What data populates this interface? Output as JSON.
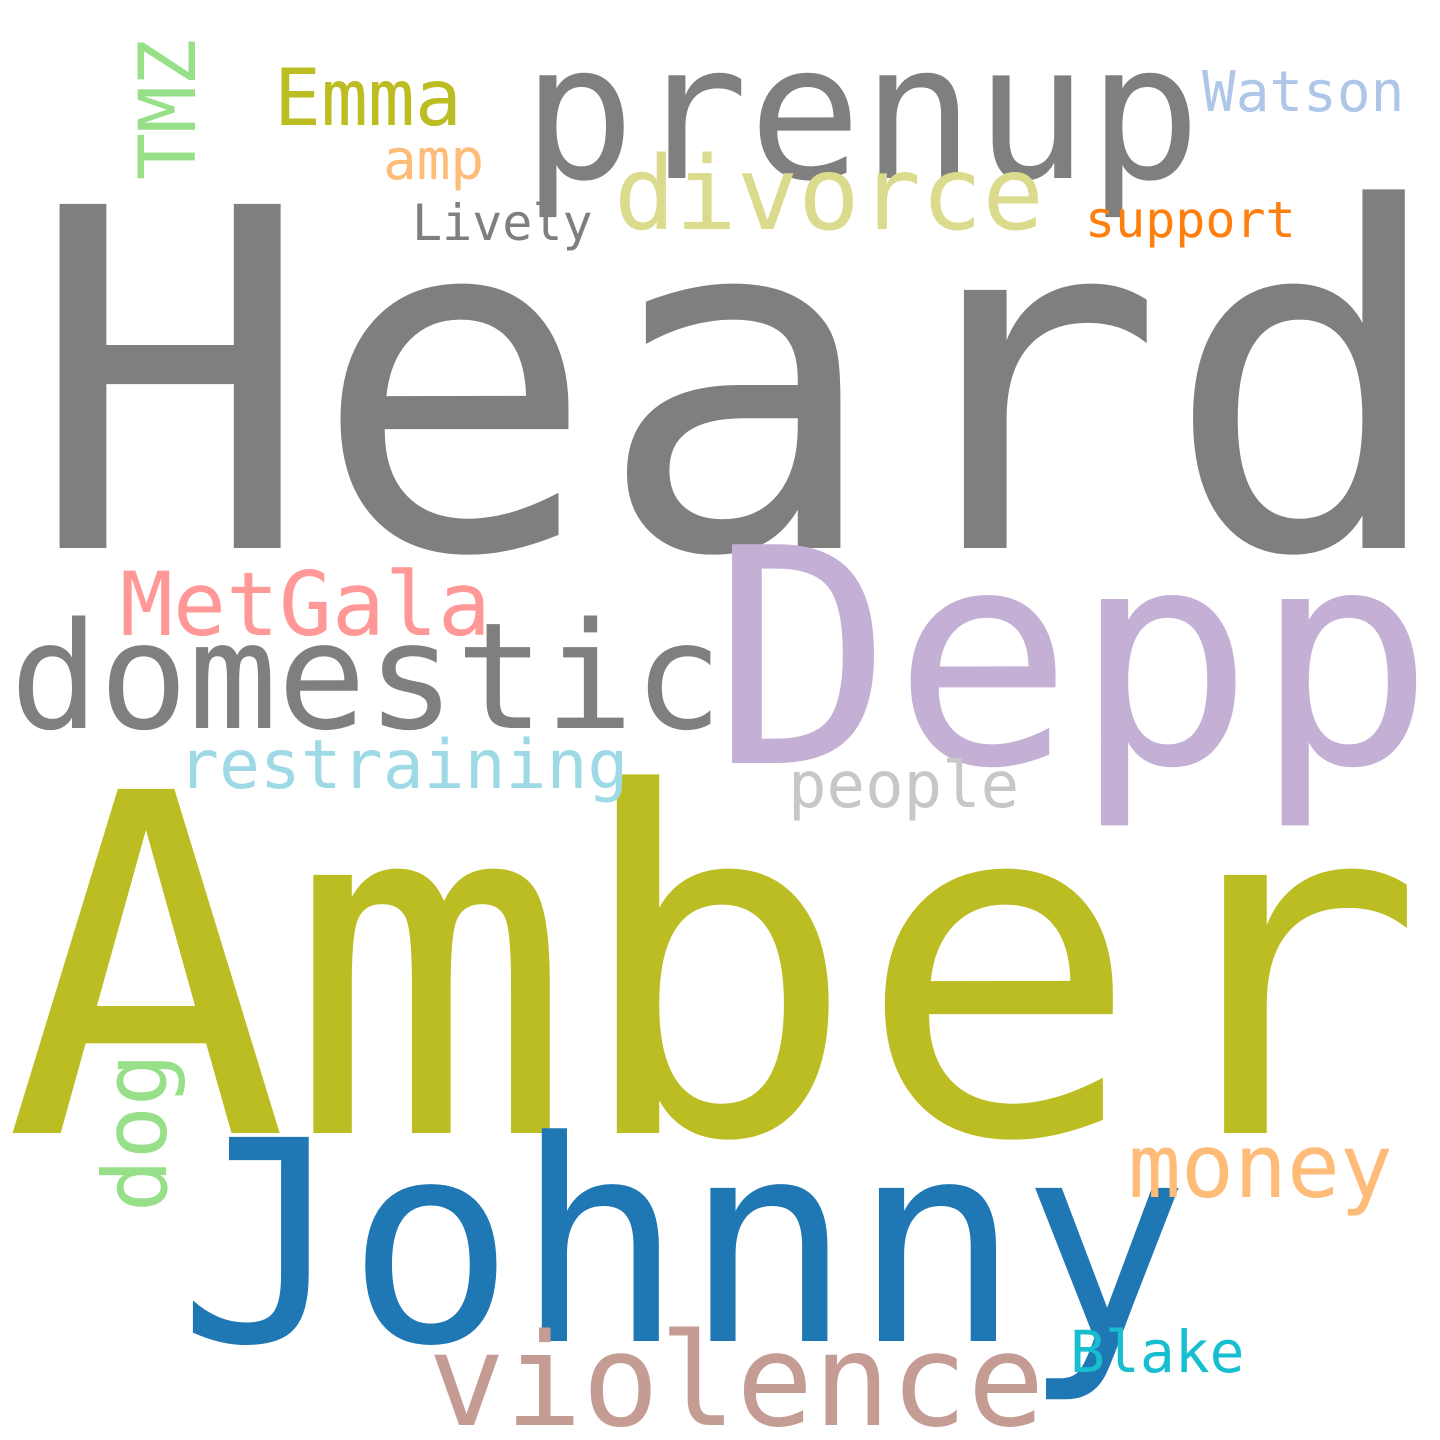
{
  "words": [
    {
      "key": "heard",
      "text": "Heard",
      "color": "#7f7f7f"
    },
    {
      "key": "amber",
      "text": "Amber",
      "color": "#bcbd22"
    },
    {
      "key": "depp",
      "text": "Depp",
      "color": "#c5b0d5"
    },
    {
      "key": "johnny",
      "text": "Johnny",
      "color": "#1f77b4"
    },
    {
      "key": "prenup",
      "text": "prenup",
      "color": "#7f7f7f"
    },
    {
      "key": "domestic",
      "text": "domestic",
      "color": "#7f7f7f"
    },
    {
      "key": "violence",
      "text": "violence",
      "color": "#c49c94"
    },
    {
      "key": "divorce",
      "text": "divorce",
      "color": "#dbdb8d"
    },
    {
      "key": "metgala",
      "text": "MetGala",
      "color": "#ff9896"
    },
    {
      "key": "money",
      "text": "money",
      "color": "#ffbb78"
    },
    {
      "key": "restraining",
      "text": "restraining",
      "color": "#9edae5"
    },
    {
      "key": "emma",
      "text": "Emma",
      "color": "#bcbd22"
    },
    {
      "key": "people",
      "text": "people",
      "color": "#c7c7c7"
    },
    {
      "key": "watson",
      "text": "Watson",
      "color": "#aec7e8"
    },
    {
      "key": "tmz",
      "text": "TMZ",
      "color": "#98df8a"
    },
    {
      "key": "dog",
      "text": "dog",
      "color": "#98df8a"
    },
    {
      "key": "blake",
      "text": "Blake",
      "color": "#17becf"
    },
    {
      "key": "support",
      "text": "support",
      "color": "#ff7f0e"
    },
    {
      "key": "lively",
      "text": "Lively",
      "color": "#7f7f7f"
    },
    {
      "key": "amp",
      "text": "amp",
      "color": "#ffbb78"
    }
  ]
}
